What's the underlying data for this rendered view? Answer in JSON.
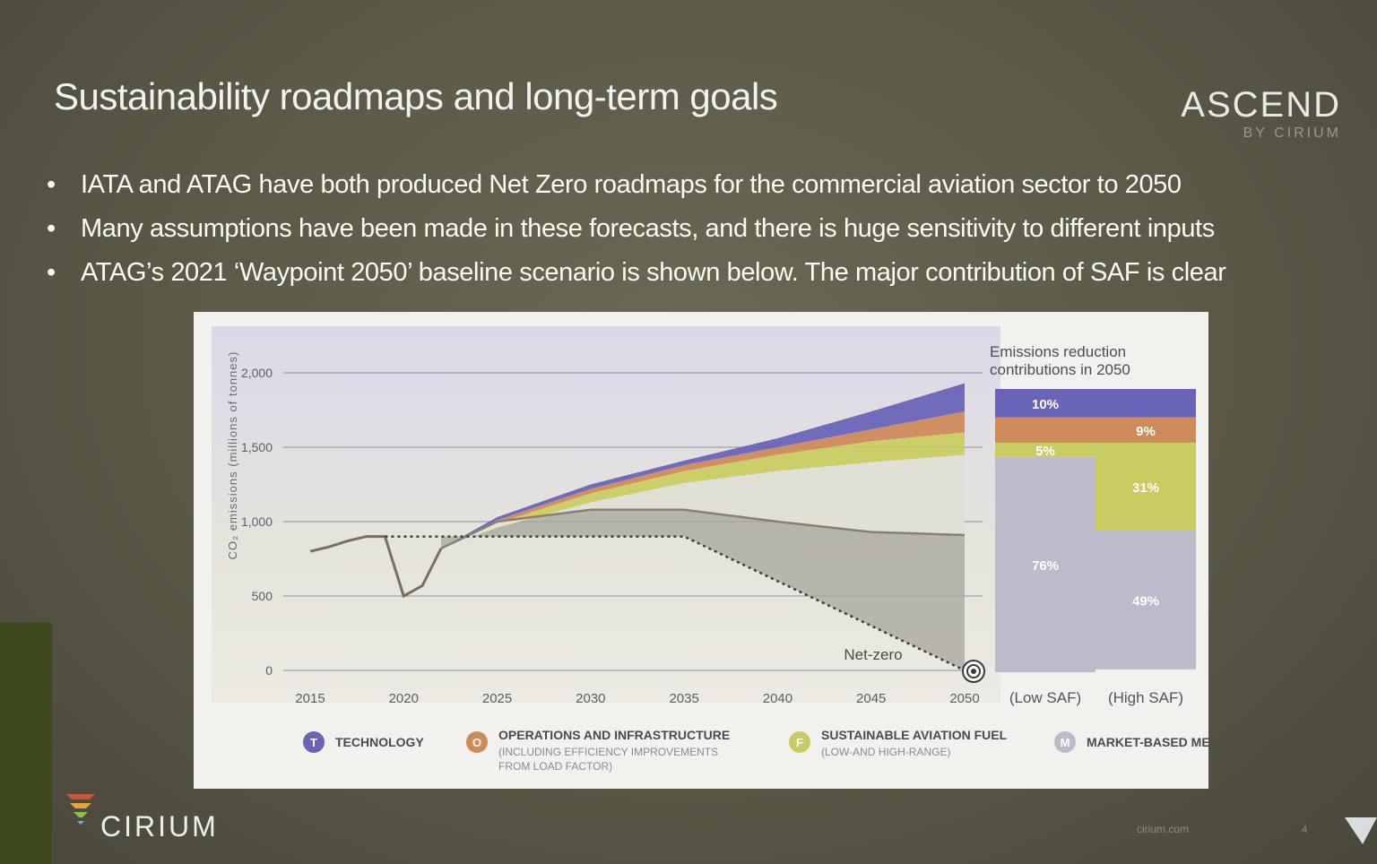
{
  "slide": {
    "title": "Sustainability roadmaps and long-term goals",
    "brand": {
      "name": "ASCEND",
      "sub": "BY CIRIUM"
    },
    "bullets": [
      "IATA and ATAG have both produced Net Zero roadmaps for the commercial aviation sector to 2050",
      "Many assumptions have been made in these forecasts, and there is huge sensitivity to different inputs",
      "ATAG’s 2021 ‘Waypoint 2050’ baseline scenario is shown below. The major contribution of SAF is clear"
    ],
    "footer": {
      "logo_text": "CIRIUM",
      "url": "cirium.com",
      "page": "4"
    }
  },
  "colors": {
    "technology": "#6a64b8",
    "operations": "#cf8a5a",
    "saf": "#c9cc62",
    "market": "#bdbbc9",
    "residual": "#a7a699"
  },
  "chart_data": [
    {
      "type": "area",
      "ylabel": "CO₂ emissions (millions of tonnes)",
      "ylim": [
        0,
        2000
      ],
      "y_ticks": [
        "0",
        "500",
        "1,000",
        "1,500",
        "2,000"
      ],
      "y_tick_values": [
        0,
        500,
        1000,
        1500,
        2000
      ],
      "x_ticks": [
        "2015",
        "2020",
        "2025",
        "2030",
        "2035",
        "2040",
        "2045",
        "2050"
      ],
      "x_tick_values": [
        2015,
        2020,
        2025,
        2030,
        2035,
        2040,
        2045,
        2050
      ],
      "xlim": [
        2015,
        2050
      ],
      "actual_emissions": {
        "x": [
          2015,
          2016,
          2017,
          2018,
          2019,
          2020,
          2021,
          2022
        ],
        "y": [
          800,
          830,
          870,
          900,
          900,
          500,
          570,
          820
        ]
      },
      "bands_x": [
        2022,
        2025,
        2030,
        2035,
        2040,
        2045,
        2050
      ],
      "series": [
        {
          "name": "TECHNOLOGY",
          "color_key": "technology",
          "top": [
            820,
            1030,
            1250,
            1410,
            1560,
            1740,
            1930
          ]
        },
        {
          "name": "OPERATIONS AND INFRASTRUCTURE",
          "color_key": "operations",
          "top": [
            820,
            1010,
            1220,
            1380,
            1500,
            1620,
            1740
          ]
        },
        {
          "name": "SUSTAINABLE AVIATION FUEL",
          "color_key": "saf",
          "top": [
            820,
            990,
            1190,
            1340,
            1450,
            1540,
            1600
          ]
        },
        {
          "name": "MARKET-BASED MEASURE",
          "color_key": "market",
          "top": [
            820,
            960,
            1130,
            1260,
            1340,
            1400,
            1450
          ]
        }
      ],
      "mid_line": {
        "x": [
          2022,
          2025,
          2030,
          2035,
          2040,
          2045,
          2050
        ],
        "y": [
          820,
          1000,
          1080,
          1080,
          1000,
          930,
          910
        ]
      },
      "dotted_line": {
        "x": [
          2019,
          2035,
          2050
        ],
        "y": [
          900,
          900,
          0
        ]
      },
      "annotation": "Net-zero"
    },
    {
      "type": "bar",
      "title": "Emissions reduction contributions in 2050",
      "categories": [
        "(Low SAF)",
        "(High SAF)"
      ],
      "series": [
        {
          "name": "TECHNOLOGY",
          "color_key": "technology",
          "values": [
            10,
            10
          ],
          "labels": [
            "10%",
            ""
          ]
        },
        {
          "name": "OPERATIONS AND INFRASTRUCTURE",
          "color_key": "operations",
          "values": [
            9,
            9
          ],
          "labels": [
            "",
            "9%"
          ]
        },
        {
          "name": "SUSTAINABLE AVIATION FUEL",
          "color_key": "saf",
          "values": [
            5,
            31
          ],
          "labels": [
            "5%",
            "31%"
          ]
        },
        {
          "name": "MARKET-BASED MEASURE",
          "color_key": "market",
          "values": [
            76,
            49
          ],
          "labels": [
            "76%",
            "49%"
          ]
        }
      ]
    }
  ],
  "legend": [
    {
      "badge": "T",
      "label": "TECHNOLOGY",
      "sub": "",
      "color_key": "technology"
    },
    {
      "badge": "O",
      "label": "OPERATIONS AND INFRASTRUCTURE",
      "sub": "(INCLUDING EFFICIENCY IMPROVEMENTS FROM LOAD FACTOR)",
      "color_key": "operations"
    },
    {
      "badge": "F",
      "label": "SUSTAINABLE AVIATION FUEL",
      "sub": "(LOW-AND HIGH-RANGE)",
      "color_key": "saf"
    },
    {
      "badge": "M",
      "label": "MARKET-BASED MEASURE",
      "sub": "",
      "color_key": "market"
    }
  ]
}
